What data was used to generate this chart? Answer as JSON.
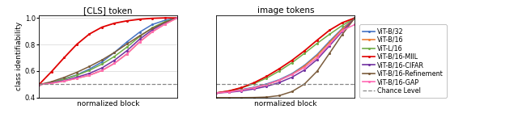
{
  "title_left": "[CLS] token",
  "title_right": "image tokens",
  "xlabel": "normalized block",
  "ylabel": "class identifiability",
  "ylim": [
    0.4,
    1.02
  ],
  "xlim": [
    0.0,
    1.0
  ],
  "chance_level": 0.5,
  "series": {
    "ViT-B/32": {
      "color": "#4472c4",
      "lw": 1.1
    },
    "ViT-B/16": {
      "color": "#ed7d31",
      "lw": 1.1
    },
    "ViT-L/16": {
      "color": "#70ad47",
      "lw": 1.1
    },
    "ViT-B/16-MIIL": {
      "color": "#e00000",
      "lw": 1.3
    },
    "ViT-B/16-CIFAR": {
      "color": "#7030a0",
      "lw": 1.1
    },
    "ViT-B/16-Refinement": {
      "color": "#7b5c3c",
      "lw": 1.1
    },
    "ViT-B/16-GAP": {
      "color": "#ff69b4",
      "lw": 1.1
    }
  },
  "cls_data": {
    "ViT-B/32": [
      0.497,
      0.512,
      0.541,
      0.57,
      0.614,
      0.668,
      0.74,
      0.82,
      0.893,
      0.95,
      0.982,
      1.0
    ],
    "ViT-B/16": [
      0.497,
      0.508,
      0.524,
      0.545,
      0.568,
      0.604,
      0.658,
      0.73,
      0.82,
      0.895,
      0.953,
      1.0
    ],
    "ViT-L/16": [
      0.497,
      0.512,
      0.538,
      0.568,
      0.605,
      0.652,
      0.71,
      0.781,
      0.86,
      0.926,
      0.972,
      1.0
    ],
    "ViT-B/16-MIIL": [
      0.497,
      0.595,
      0.7,
      0.8,
      0.878,
      0.93,
      0.96,
      0.978,
      0.99,
      0.997,
      1.0,
      1.0
    ],
    "ViT-B/16-CIFAR": [
      0.497,
      0.51,
      0.528,
      0.553,
      0.582,
      0.623,
      0.681,
      0.754,
      0.84,
      0.91,
      0.964,
      1.0
    ],
    "ViT-B/16-Refinement": [
      0.497,
      0.52,
      0.552,
      0.59,
      0.634,
      0.683,
      0.74,
      0.804,
      0.865,
      0.921,
      0.966,
      1.0
    ],
    "ViT-B/16-GAP": [
      0.497,
      0.508,
      0.524,
      0.545,
      0.568,
      0.604,
      0.658,
      0.73,
      0.82,
      0.895,
      0.953,
      1.0
    ]
  },
  "img_data": {
    "ViT-B/32": [
      0.435,
      0.445,
      0.46,
      0.478,
      0.503,
      0.535,
      0.58,
      0.643,
      0.724,
      0.825,
      0.92,
      1.0
    ],
    "ViT-B/16": [
      0.435,
      0.443,
      0.456,
      0.474,
      0.498,
      0.53,
      0.575,
      0.637,
      0.717,
      0.816,
      0.914,
      1.0
    ],
    "ViT-L/16": [
      0.435,
      0.45,
      0.473,
      0.505,
      0.547,
      0.6,
      0.662,
      0.733,
      0.808,
      0.877,
      0.943,
      1.0
    ],
    "ViT-B/16-MIIL": [
      0.435,
      0.45,
      0.475,
      0.512,
      0.56,
      0.617,
      0.68,
      0.752,
      0.832,
      0.908,
      0.964,
      1.0
    ],
    "ViT-B/16-CIFAR": [
      0.435,
      0.44,
      0.45,
      0.465,
      0.485,
      0.513,
      0.553,
      0.608,
      0.686,
      0.791,
      0.898,
      1.0
    ],
    "ViT-B/16-Refinement": [
      0.4,
      0.4,
      0.4,
      0.401,
      0.404,
      0.415,
      0.445,
      0.502,
      0.598,
      0.735,
      0.875,
      1.0
    ],
    "ViT-B/16-GAP": [
      0.435,
      0.443,
      0.456,
      0.474,
      0.498,
      0.53,
      0.573,
      0.626,
      0.7,
      0.802,
      0.905,
      0.95
    ]
  },
  "yticks": [
    0.4,
    0.6,
    0.8,
    1.0
  ],
  "xticks": [],
  "legend_fontsize": 5.8,
  "tick_fontsize": 6.0,
  "label_fontsize": 6.5,
  "title_fontsize": 7.5
}
